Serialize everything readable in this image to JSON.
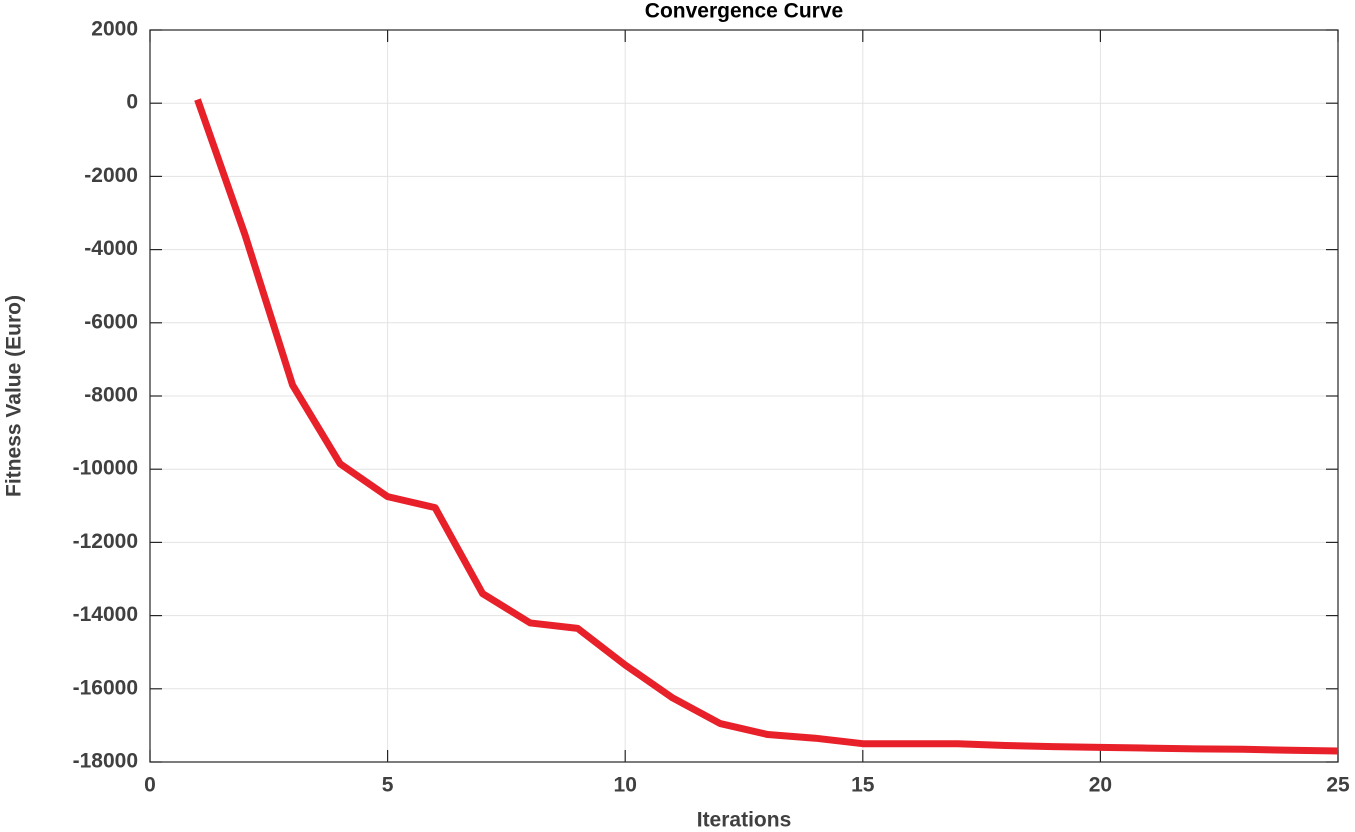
{
  "chart_data": {
    "type": "line",
    "title": "Convergence Curve",
    "x_label": "Iterations",
    "y_label": "Fitness Value (Euro)",
    "x": [
      1,
      2,
      3,
      4,
      5,
      6,
      7,
      8,
      9,
      10,
      11,
      12,
      13,
      14,
      15,
      16,
      17,
      18,
      19,
      20,
      21,
      22,
      23,
      24,
      25
    ],
    "series": [
      {
        "name": "Fitness",
        "color": "#e8202a",
        "values": [
          100,
          -3600,
          -7700,
          -9850,
          -10750,
          -11050,
          -13400,
          -14200,
          -14350,
          -15350,
          -16250,
          -16950,
          -17250,
          -17350,
          -17500,
          -17500,
          -17500,
          -17550,
          -17580,
          -17600,
          -17620,
          -17640,
          -17650,
          -17680,
          -17700
        ]
      }
    ],
    "xlim": [
      0,
      25
    ],
    "xticks": [
      0,
      5,
      10,
      15,
      20,
      25
    ],
    "ylim": [
      -18000,
      2000
    ],
    "yticks": [
      -18000,
      -16000,
      -14000,
      -12000,
      -10000,
      -8000,
      -6000,
      -4000,
      -2000,
      0,
      2000
    ],
    "grid": true
  }
}
